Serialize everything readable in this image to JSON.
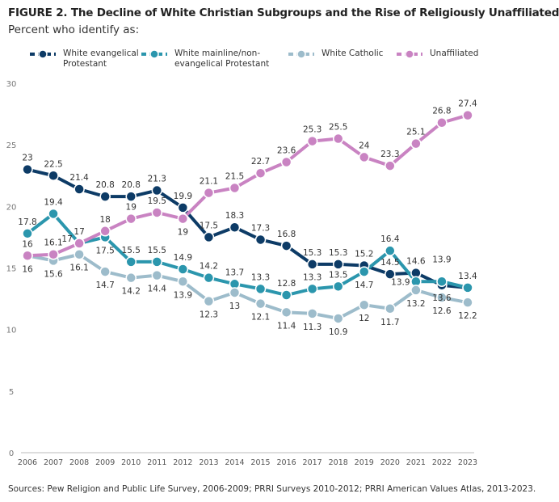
{
  "chart_data": {
    "type": "line",
    "title": "FIGURE 2.  The Decline of White Christian Subgroups and the Rise of Religiously Unaffiliated",
    "subtitle": "Percent who identify as:",
    "source": "Sources: Pew Religion and Public Life Survey, 2006-2009; PRRI Surveys 2010-2012; PRRI American Values Atlas, 2013-2023.",
    "x": [
      2006,
      2007,
      2008,
      2009,
      2010,
      2011,
      2012,
      2013,
      2014,
      2015,
      2016,
      2017,
      2018,
      2019,
      2020,
      2021,
      2022,
      2023
    ],
    "ylim": [
      0,
      30
    ],
    "yticks": [
      0,
      5,
      10,
      15,
      20,
      25,
      30
    ],
    "grid": false,
    "legend_position": "top",
    "series": [
      {
        "name": "White evangelical Protestant",
        "color": "#0d3b66",
        "label_pos": "above",
        "values": [
          23,
          22.5,
          21.4,
          20.8,
          20.8,
          21.3,
          19.9,
          17.5,
          18.3,
          17.3,
          16.8,
          15.3,
          15.3,
          15.2,
          14.5,
          14.6,
          13.6,
          13.4
        ],
        "unlabeled": [
          2023
        ]
      },
      {
        "name": "White mainline/non-evangelical Protestant",
        "color": "#2b96ad",
        "label_pos": "above",
        "values": [
          17.8,
          19.4,
          17,
          17.5,
          15.5,
          15.5,
          14.9,
          14.2,
          13.7,
          13.3,
          12.8,
          13.3,
          13.5,
          14.7,
          16.4,
          13.9,
          13.9,
          13.4
        ],
        "unlabeled": []
      },
      {
        "name": "White Catholic",
        "color": "#9dbccb",
        "label_pos": "below",
        "values": [
          16,
          15.6,
          16.1,
          14.7,
          14.2,
          14.4,
          13.9,
          12.3,
          13,
          12.1,
          11.4,
          11.3,
          10.9,
          12,
          11.7,
          13.2,
          12.6,
          12.2
        ],
        "unlabeled": []
      },
      {
        "name": "Unaffiliated",
        "color": "#c983c2",
        "label_pos": "above",
        "values": [
          16,
          16.1,
          17,
          18,
          19,
          19.5,
          19,
          21.1,
          21.5,
          22.7,
          23.6,
          25.3,
          25.5,
          24,
          23.3,
          25.1,
          26.8,
          27.4
        ],
        "unlabeled": []
      }
    ]
  },
  "legend": {
    "items": [
      {
        "line1": "White evangelical",
        "line2": "Protestant"
      },
      {
        "line1": "White mainline/non-",
        "line2": "evangelical Protestant"
      },
      {
        "line1": "White Catholic",
        "line2": ""
      },
      {
        "line1": "Unaffiliated",
        "line2": ""
      }
    ]
  }
}
